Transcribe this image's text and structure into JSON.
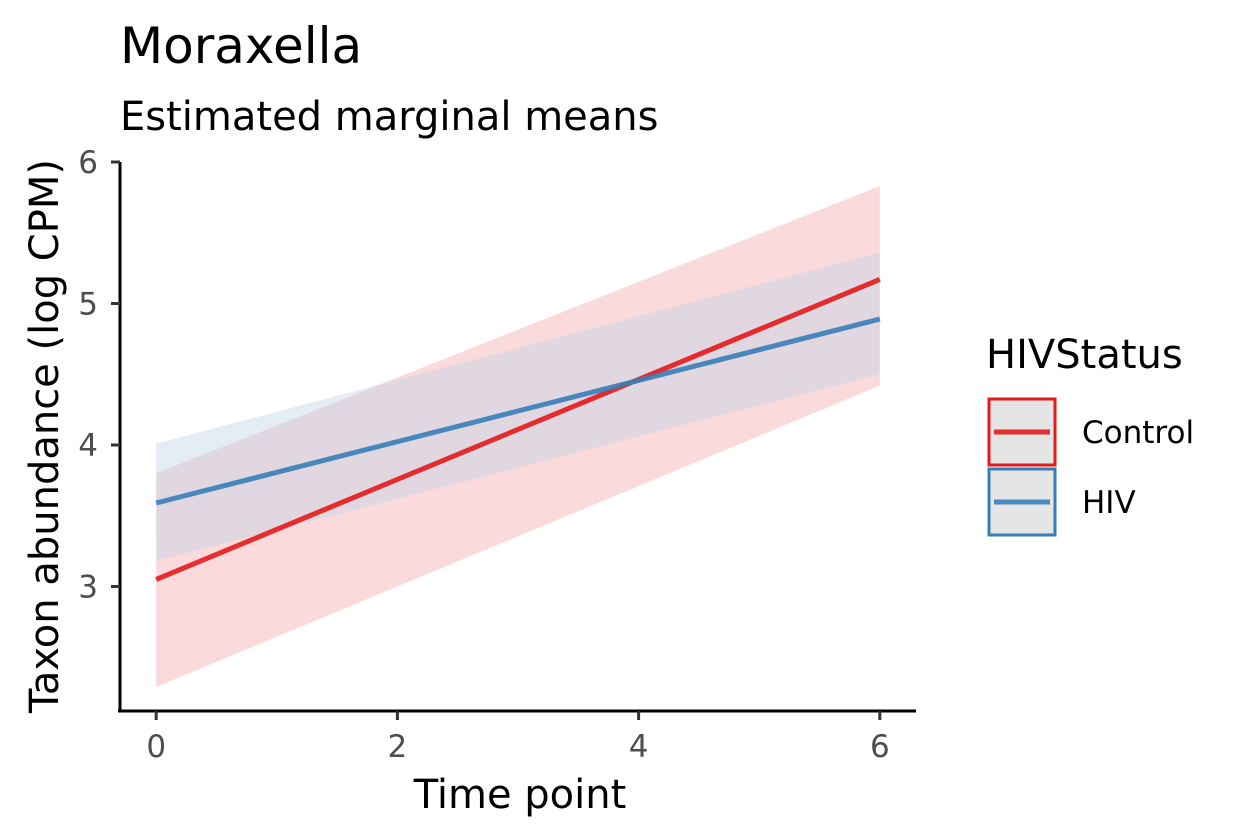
{
  "chart_data": {
    "type": "line",
    "title": "Moraxella",
    "subtitle": "Estimated marginal means",
    "xlabel": "Time point",
    "ylabel": "Taxon abundance (log CPM)",
    "xlim": [
      -0.3,
      6.3
    ],
    "ylim": [
      2.12,
      6.0
    ],
    "xticks": [
      0,
      2,
      4,
      6
    ],
    "yticks": [
      3,
      4,
      5,
      6
    ],
    "grid": false,
    "legend": {
      "title": "HIVStatus",
      "placement": "right"
    },
    "series": [
      {
        "name": "Control",
        "color": "#E41A1C",
        "x": [
          0,
          6
        ],
        "y": [
          3.05,
          5.17
        ],
        "lower": [
          2.29,
          4.42
        ],
        "upper": [
          3.8,
          5.83
        ]
      },
      {
        "name": "HIV",
        "color": "#377EB8",
        "x": [
          0,
          6
        ],
        "y": [
          3.59,
          4.89
        ],
        "lower": [
          3.18,
          4.5
        ],
        "upper": [
          4.01,
          5.36
        ]
      }
    ]
  }
}
